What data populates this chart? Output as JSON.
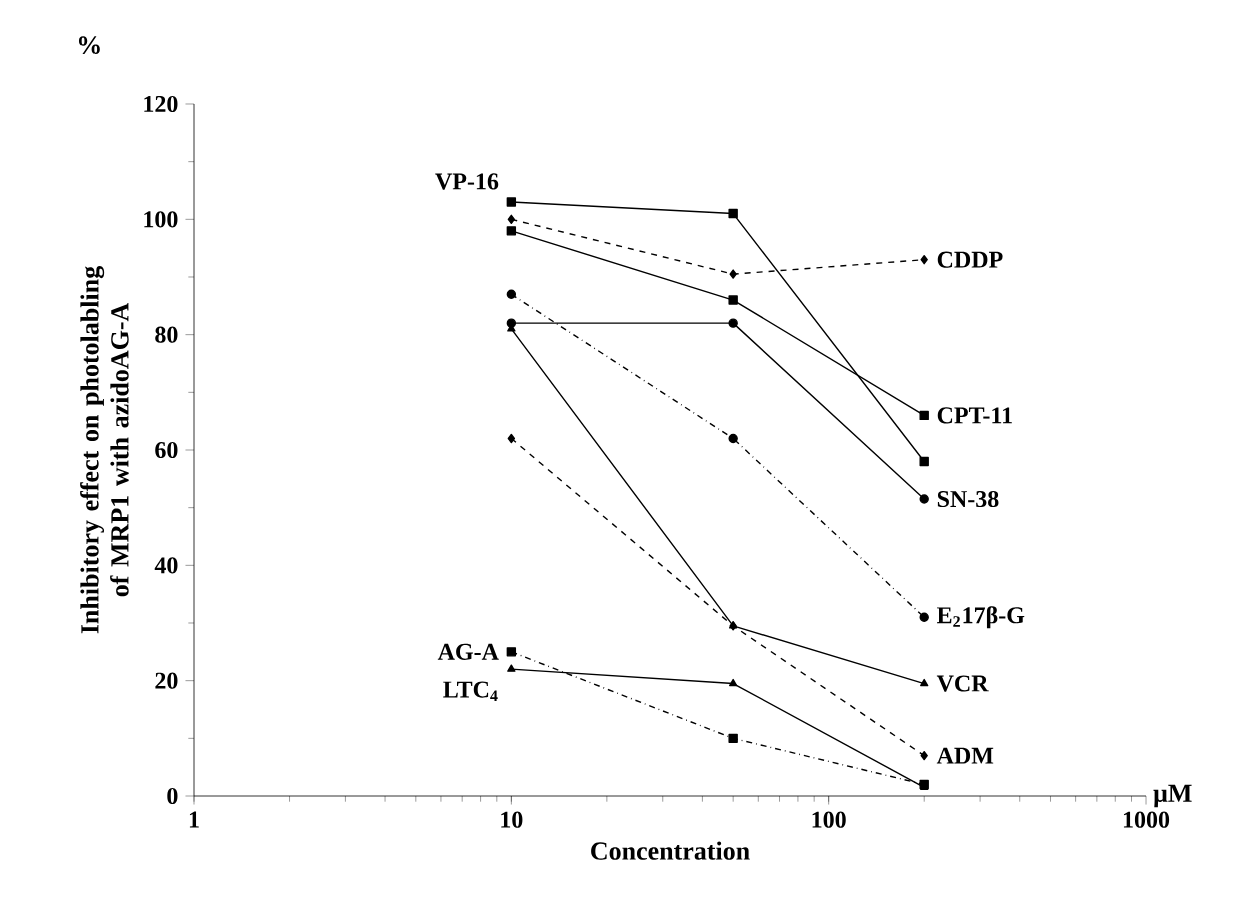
{
  "chart_data": {
    "type": "line",
    "xlabel": "Concentration",
    "ylabel": "Inhibitory effect on photolabling of MRP1 with azidoAG-A",
    "annotations": [
      "%",
      "μM"
    ],
    "log": "x",
    "xlim": [
      1,
      1000
    ],
    "xticks": [
      1,
      10,
      100,
      1000
    ],
    "ylim": [
      0,
      120
    ],
    "yticks": [
      0,
      20,
      40,
      60,
      80,
      100,
      120
    ],
    "grid": false,
    "x": [
      10,
      50,
      200
    ],
    "series": [
      {
        "name": "VP-16",
        "color": "#000000",
        "marker": "square",
        "line_style": "solid",
        "values": [
          103,
          101,
          58
        ]
      },
      {
        "name": "CDDP",
        "color": "#000000",
        "marker": "diamond",
        "line_style": "dashed",
        "values": [
          100,
          90.5,
          93
        ]
      },
      {
        "name": "CPT-11",
        "color": "#000000",
        "marker": "square",
        "line_style": "solid",
        "values": [
          98,
          86,
          66
        ]
      },
      {
        "name": "SN-38",
        "color": "#000000",
        "marker": "circle",
        "line_style": "solid",
        "values": [
          82,
          82,
          51.5
        ]
      },
      {
        "name": "E$_{2}$17β-G",
        "color": "#000000",
        "marker": "circle",
        "line_style": "dashdot",
        "values": [
          87,
          62,
          31
        ]
      },
      {
        "name": "VCR",
        "color": "#000000",
        "marker": "triangle",
        "line_style": "solid",
        "values": [
          81,
          29.5,
          19.5
        ]
      },
      {
        "name": "ADM",
        "color": "#000000",
        "marker": "diamond",
        "line_style": "dashed",
        "values": [
          62,
          29.5,
          7
        ]
      },
      {
        "name": "AG-A",
        "color": "#000000",
        "marker": "square",
        "line_style": "dashdot",
        "values": [
          25,
          10,
          2
        ]
      },
      {
        "name": "LTC$_{4}$",
        "color": "#000000",
        "marker": "triangle",
        "line_style": "solid",
        "values": [
          22,
          19.5,
          1.5
        ]
      }
    ]
  }
}
